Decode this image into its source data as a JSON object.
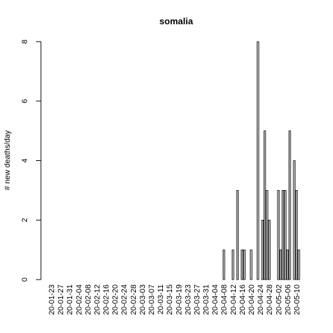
{
  "chart_data": {
    "type": "bar",
    "title": "somalia",
    "xlabel": "",
    "ylabel": "# new deaths/day",
    "ylim": [
      0,
      8
    ],
    "yticks": [
      0,
      2,
      4,
      6,
      8
    ],
    "bar_fill": "#bebebe",
    "bar_stroke": "#000000",
    "grid": false,
    "legend": "none",
    "categories": [
      "20-01-23",
      "20-01-24",
      "20-01-25",
      "20-01-26",
      "20-01-27",
      "20-01-28",
      "20-01-29",
      "20-01-30",
      "20-01-31",
      "20-02-01",
      "20-02-02",
      "20-02-03",
      "20-02-04",
      "20-02-05",
      "20-02-06",
      "20-02-07",
      "20-02-08",
      "20-02-09",
      "20-02-10",
      "20-02-11",
      "20-02-12",
      "20-02-13",
      "20-02-14",
      "20-02-15",
      "20-02-16",
      "20-02-17",
      "20-02-18",
      "20-02-19",
      "20-02-20",
      "20-02-21",
      "20-02-22",
      "20-02-23",
      "20-02-24",
      "20-02-25",
      "20-02-26",
      "20-02-27",
      "20-02-28",
      "20-02-29",
      "20-03-01",
      "20-03-02",
      "20-03-03",
      "20-03-04",
      "20-03-05",
      "20-03-06",
      "20-03-07",
      "20-03-08",
      "20-03-09",
      "20-03-10",
      "20-03-11",
      "20-03-12",
      "20-03-13",
      "20-03-14",
      "20-03-15",
      "20-03-16",
      "20-03-17",
      "20-03-18",
      "20-03-19",
      "20-03-20",
      "20-03-21",
      "20-03-22",
      "20-03-23",
      "20-03-24",
      "20-03-25",
      "20-03-26",
      "20-03-27",
      "20-03-28",
      "20-03-29",
      "20-03-30",
      "20-03-31",
      "20-04-01",
      "20-04-02",
      "20-04-03",
      "20-04-04",
      "20-04-05",
      "20-04-06",
      "20-04-07",
      "20-04-08",
      "20-04-09",
      "20-04-10",
      "20-04-11",
      "20-04-12",
      "20-04-13",
      "20-04-14",
      "20-04-15",
      "20-04-16",
      "20-04-17",
      "20-04-18",
      "20-04-19",
      "20-04-20",
      "20-04-21",
      "20-04-22",
      "20-04-23",
      "20-04-24",
      "20-04-25",
      "20-04-26",
      "20-04-27",
      "20-04-28",
      "20-04-29",
      "20-04-30",
      "20-05-01",
      "20-05-02",
      "20-05-03",
      "20-05-04",
      "20-05-05",
      "20-05-06",
      "20-05-07",
      "20-05-08",
      "20-05-09",
      "20-05-10",
      "20-05-11",
      "20-05-12"
    ],
    "tick_labels": [
      "20-01-23",
      "20-01-27",
      "20-01-31",
      "20-02-04",
      "20-02-08",
      "20-02-12",
      "20-02-16",
      "20-02-20",
      "20-02-24",
      "20-02-28",
      "20-03-03",
      "20-03-07",
      "20-03-11",
      "20-03-15",
      "20-03-19",
      "20-03-23",
      "20-03-27",
      "20-03-31",
      "20-04-04",
      "20-04-08",
      "20-04-12",
      "20-04-16",
      "20-04-20",
      "20-04-24",
      "20-04-28",
      "20-05-02",
      "20-05-06",
      "20-05-10"
    ],
    "values": [
      0,
      0,
      0,
      0,
      0,
      0,
      0,
      0,
      0,
      0,
      0,
      0,
      0,
      0,
      0,
      0,
      0,
      0,
      0,
      0,
      0,
      0,
      0,
      0,
      0,
      0,
      0,
      0,
      0,
      0,
      0,
      0,
      0,
      0,
      0,
      0,
      0,
      0,
      0,
      0,
      0,
      0,
      0,
      0,
      0,
      0,
      0,
      0,
      0,
      0,
      0,
      0,
      0,
      0,
      0,
      0,
      0,
      0,
      0,
      0,
      0,
      0,
      0,
      0,
      0,
      0,
      0,
      0,
      0,
      0,
      0,
      0,
      0,
      0,
      0,
      0,
      1,
      0,
      0,
      0,
      1,
      0,
      3,
      0,
      1,
      1,
      0,
      0,
      1,
      0,
      0,
      8,
      0,
      2,
      5,
      3,
      2,
      0,
      0,
      0,
      3,
      1,
      3,
      3,
      1,
      5,
      0,
      4,
      3,
      1,
      0
    ]
  }
}
